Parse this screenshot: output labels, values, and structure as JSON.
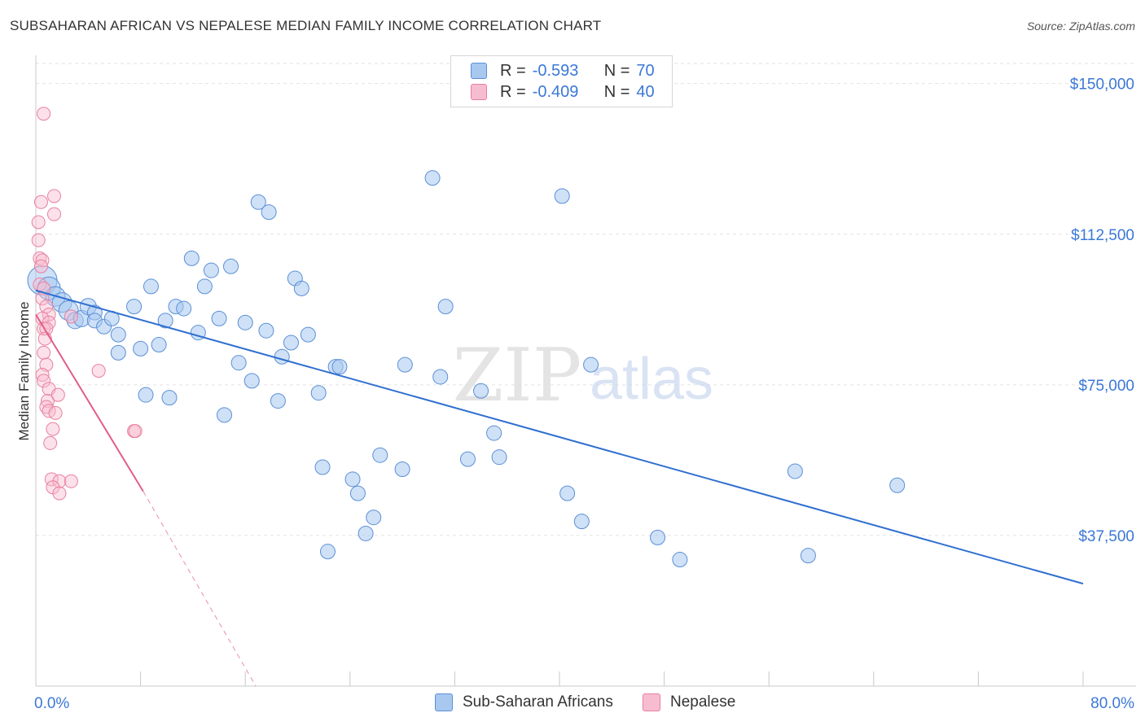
{
  "header": {
    "title": "SUBSAHARAN AFRICAN VS NEPALESE MEDIAN FAMILY INCOME CORRELATION CHART",
    "source": "Source: ZipAtlas.com"
  },
  "watermark": {
    "zip": "ZIP",
    "atlas": "atlas"
  },
  "legend": {
    "r_label": "R =",
    "n_label": "N =",
    "series": [
      {
        "name": "Sub-Saharan Africans",
        "r": "-0.593",
        "n": "70",
        "fill": "#a8c8f0",
        "stroke": "#5b8fd6",
        "line": "#2f6fd0"
      },
      {
        "name": "Nepalese",
        "r": "-0.409",
        "n": "40",
        "fill": "#f8bcd0",
        "stroke": "#e8809f",
        "line": "#e05e8a"
      }
    ]
  },
  "chart_data": {
    "type": "scatter",
    "title": "SUBSAHARAN AFRICAN VS NEPALESE MEDIAN FAMILY INCOME CORRELATION CHART",
    "xlabel": "",
    "ylabel": "Median Family Income",
    "xlim": [
      0,
      80
    ],
    "ylim": [
      0,
      155000
    ],
    "x_tick_labels": [
      "0.0%",
      "80.0%"
    ],
    "y_ticks": [
      37500,
      75000,
      112500,
      150000
    ],
    "y_tick_labels": [
      "$37,500",
      "$75,000",
      "$112,500",
      "$150,000"
    ],
    "grid": true,
    "series": [
      {
        "name": "Sub-Saharan Africans",
        "regression": {
          "x0": 0,
          "y0": 98500,
          "x1": 80,
          "y1": 25500
        },
        "points": [
          [
            0.5,
            101000,
            18
          ],
          [
            1.0,
            99000,
            14
          ],
          [
            1.5,
            97000,
            12
          ],
          [
            2.0,
            95500,
            12
          ],
          [
            2.5,
            93500,
            12
          ],
          [
            3.0,
            91000,
            10
          ],
          [
            3.5,
            91500,
            10
          ],
          [
            4.0,
            94500,
            10
          ],
          [
            4.5,
            93000,
            9
          ],
          [
            4.5,
            91000,
            9
          ],
          [
            5.2,
            89500,
            9
          ],
          [
            5.8,
            91500,
            9
          ],
          [
            6.3,
            87500,
            9
          ],
          [
            6.3,
            83000,
            9
          ],
          [
            7.5,
            94500,
            9
          ],
          [
            8.0,
            84000,
            9
          ],
          [
            8.4,
            72500,
            9
          ],
          [
            8.8,
            99500,
            9
          ],
          [
            9.4,
            85000,
            9
          ],
          [
            9.9,
            91000,
            9
          ],
          [
            10.2,
            71800,
            9
          ],
          [
            10.7,
            94500,
            9
          ],
          [
            11.3,
            94000,
            9
          ],
          [
            11.9,
            106500,
            9
          ],
          [
            12.4,
            88000,
            9
          ],
          [
            12.9,
            99500,
            9
          ],
          [
            13.4,
            103500,
            9
          ],
          [
            14.0,
            91500,
            9
          ],
          [
            14.4,
            67500,
            9
          ],
          [
            14.9,
            104500,
            9
          ],
          [
            15.5,
            80500,
            9
          ],
          [
            16.0,
            90500,
            9
          ],
          [
            16.5,
            76000,
            9
          ],
          [
            17.0,
            120500,
            9
          ],
          [
            17.6,
            88500,
            9
          ],
          [
            17.8,
            118000,
            9
          ],
          [
            18.5,
            71000,
            9
          ],
          [
            18.8,
            82000,
            9
          ],
          [
            19.5,
            85500,
            9
          ],
          [
            19.8,
            101500,
            9
          ],
          [
            20.3,
            99000,
            9
          ],
          [
            20.8,
            87500,
            9
          ],
          [
            21.6,
            73000,
            9
          ],
          [
            21.9,
            54500,
            9
          ],
          [
            22.3,
            33500,
            9
          ],
          [
            22.9,
            79500,
            9
          ],
          [
            23.2,
            79500,
            9
          ],
          [
            24.2,
            51500,
            9
          ],
          [
            24.6,
            48000,
            9
          ],
          [
            25.2,
            38000,
            9
          ],
          [
            25.8,
            42000,
            9
          ],
          [
            26.3,
            57500,
            9
          ],
          [
            28.0,
            54000,
            9
          ],
          [
            28.2,
            80000,
            9
          ],
          [
            30.3,
            126500,
            9
          ],
          [
            30.9,
            77000,
            9
          ],
          [
            31.3,
            94500,
            9
          ],
          [
            33.0,
            56500,
            9
          ],
          [
            34.0,
            73500,
            9
          ],
          [
            35.0,
            63000,
            9
          ],
          [
            35.4,
            57000,
            9
          ],
          [
            40.2,
            122000,
            9
          ],
          [
            40.6,
            48000,
            9
          ],
          [
            41.7,
            41000,
            9
          ],
          [
            42.4,
            80000,
            9
          ],
          [
            47.5,
            37000,
            9
          ],
          [
            49.2,
            31500,
            9
          ],
          [
            58.0,
            53500,
            9
          ],
          [
            59.0,
            32500,
            9
          ],
          [
            65.8,
            50000,
            9
          ]
        ]
      },
      {
        "name": "Nepalese",
        "regression": {
          "x0": 0,
          "y0": 92500,
          "x1": 8.2,
          "y1": 48500,
          "dash_x1": 16.8,
          "dash_y1": 0
        },
        "points": [
          [
            0.6,
            142500
          ],
          [
            1.4,
            122000
          ],
          [
            0.4,
            120500
          ],
          [
            1.4,
            117500
          ],
          [
            0.2,
            115500
          ],
          [
            0.2,
            111000
          ],
          [
            0.3,
            106500
          ],
          [
            0.5,
            106000
          ],
          [
            0.4,
            104500
          ],
          [
            0.3,
            100000
          ],
          [
            0.6,
            99000
          ],
          [
            0.5,
            96500
          ],
          [
            0.8,
            94500
          ],
          [
            1.0,
            92500
          ],
          [
            0.5,
            91500
          ],
          [
            1.0,
            90500
          ],
          [
            0.6,
            89000
          ],
          [
            0.8,
            89000
          ],
          [
            0.7,
            86500
          ],
          [
            0.6,
            83000
          ],
          [
            0.8,
            80000
          ],
          [
            0.5,
            77500
          ],
          [
            0.6,
            76000
          ],
          [
            1.0,
            74000
          ],
          [
            0.9,
            71000
          ],
          [
            1.7,
            72500
          ],
          [
            0.8,
            69500
          ],
          [
            1.0,
            68500
          ],
          [
            1.5,
            68000
          ],
          [
            1.3,
            64000
          ],
          [
            1.1,
            60500
          ],
          [
            1.2,
            51500
          ],
          [
            1.8,
            51000
          ],
          [
            2.7,
            51000
          ],
          [
            1.3,
            49500
          ],
          [
            1.8,
            48000
          ],
          [
            2.7,
            92000
          ],
          [
            4.8,
            78500
          ],
          [
            7.5,
            63500
          ],
          [
            7.6,
            63500
          ]
        ]
      }
    ]
  }
}
